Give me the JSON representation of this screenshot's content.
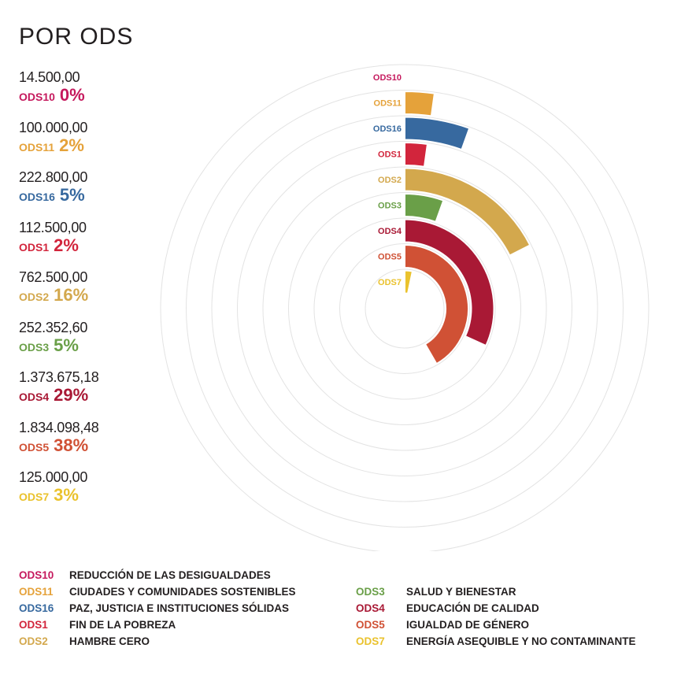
{
  "title": "POR ODS",
  "chart_data": {
    "type": "radial-bar",
    "rows": [
      {
        "code": "ODS10",
        "amount": "14.500,00",
        "pct": "0%",
        "value": 0.3,
        "color": "#c5195d"
      },
      {
        "code": "ODS11",
        "amount": "100.000,00",
        "pct": "2%",
        "value": 2,
        "color": "#e5a23a"
      },
      {
        "code": "ODS16",
        "amount": "222.800,00",
        "pct": "5%",
        "value": 5,
        "color": "#37699f"
      },
      {
        "code": "ODS1",
        "amount": "112.500,00",
        "pct": "2%",
        "value": 2,
        "color": "#d2253c"
      },
      {
        "code": "ODS2",
        "amount": "762.500,00",
        "pct": "16%",
        "value": 16,
        "color": "#d3a84d"
      },
      {
        "code": "ODS3",
        "amount": "252.352,60",
        "pct": "5%",
        "value": 5,
        "color": "#6a9f48"
      },
      {
        "code": "ODS4",
        "amount": "1.373.675,18",
        "pct": "29%",
        "value": 29,
        "color": "#a91935"
      },
      {
        "code": "ODS5",
        "amount": "1.834.098,48",
        "pct": "38%",
        "value": 38,
        "color": "#d05135"
      },
      {
        "code": "ODS7",
        "amount": "125.000,00",
        "pct": "3%",
        "value": 3,
        "color": "#eac22d"
      }
    ],
    "legend": [
      {
        "code": "ODS10",
        "label": "REDUCCIÓN DE LAS DESIGUALDADES",
        "color": "#c5195d"
      },
      {
        "code": "ODS11",
        "label": "CIUDADES Y COMUNIDADES SOSTENIBLES",
        "color": "#e5a23a"
      },
      {
        "code": "ODS16",
        "label": "PAZ, JUSTICIA E INSTITUCIONES SÓLIDAS",
        "color": "#37699f"
      },
      {
        "code": "ODS1",
        "label": "FIN DE LA POBREZA",
        "color": "#d2253c"
      },
      {
        "code": "ODS2",
        "label": "HAMBRE CERO",
        "color": "#d3a84d"
      },
      {
        "code": "ODS3",
        "label": "SALUD Y BIENESTAR",
        "color": "#6a9f48"
      },
      {
        "code": "ODS4",
        "label": "EDUCACIÓN DE CALIDAD",
        "color": "#a91935"
      },
      {
        "code": "ODS5",
        "label": "IGUALDAD DE GÉNERO",
        "color": "#d05135"
      },
      {
        "code": "ODS7",
        "label": "ENERGÍA ASEQUIBLE Y NO CONTAMINANTE",
        "color": "#eac22d"
      }
    ]
  }
}
